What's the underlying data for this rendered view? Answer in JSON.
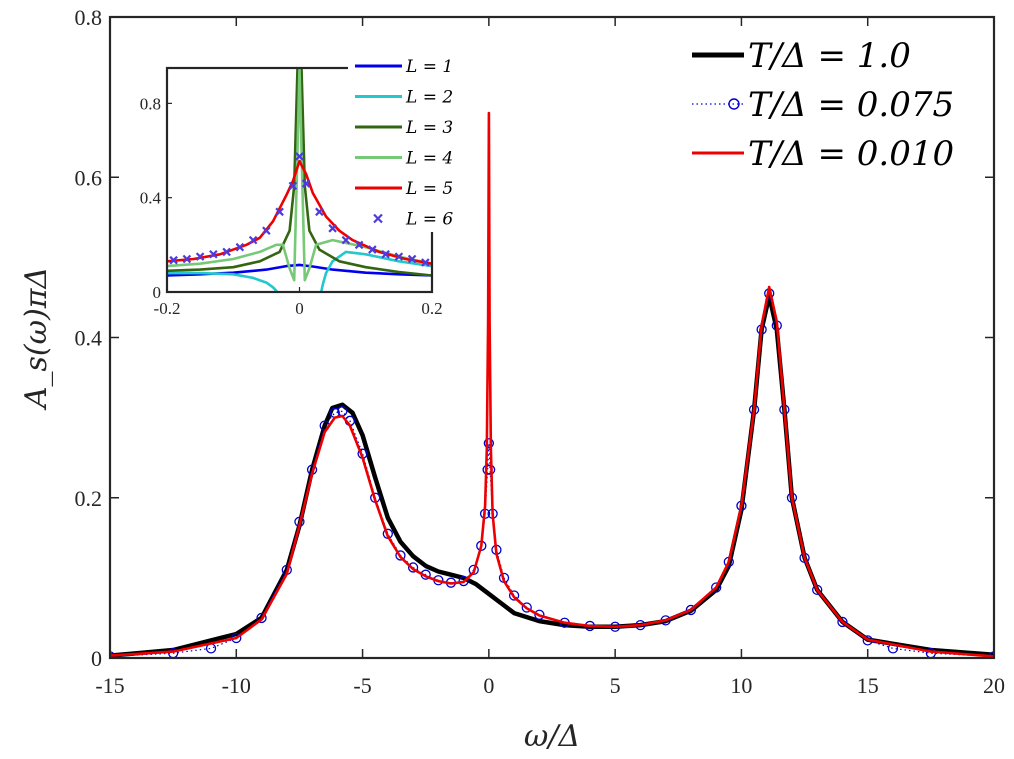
{
  "chart_data": [
    {
      "type": "line",
      "xlabel": "ω/Δ",
      "ylabel": "A_s(ω)πΔ",
      "xlim": [
        -15,
        20
      ],
      "ylim": [
        0,
        0.8
      ],
      "xticks": [
        -15,
        -10,
        -5,
        0,
        5,
        10,
        15,
        20
      ],
      "xtick_labels": [
        "-15",
        "-10",
        "-5",
        "0",
        "5",
        "10",
        "15",
        "20"
      ],
      "yticks": [
        0,
        0.2,
        0.4,
        0.6,
        0.8
      ],
      "ytick_labels": [
        "0",
        "0.2",
        "0.4",
        "0.6",
        "0.8"
      ],
      "grid": false,
      "legend_position": "top-right",
      "series": [
        {
          "name": "T/Δ = 1.0",
          "color": "#000000",
          "style": "solid-thick",
          "x": [
            -15,
            -12.5,
            -10,
            -9,
            -8,
            -7.5,
            -7,
            -6.5,
            -6.2,
            -5.8,
            -5.4,
            -5,
            -4.5,
            -4,
            -3.5,
            -3,
            -2.5,
            -2,
            -1.5,
            -1,
            -0.5,
            0,
            0.5,
            1,
            2,
            3,
            4,
            5,
            6,
            7,
            8,
            9,
            9.5,
            10,
            10.5,
            10.8,
            11.1,
            11.4,
            11.7,
            12,
            12.5,
            13,
            14,
            15,
            17.5,
            20
          ],
          "y": [
            0.003,
            0.01,
            0.03,
            0.05,
            0.11,
            0.165,
            0.235,
            0.29,
            0.312,
            0.316,
            0.306,
            0.278,
            0.225,
            0.175,
            0.145,
            0.127,
            0.115,
            0.108,
            0.104,
            0.1,
            0.092,
            0.08,
            0.068,
            0.056,
            0.046,
            0.041,
            0.039,
            0.039,
            0.041,
            0.046,
            0.059,
            0.085,
            0.115,
            0.185,
            0.31,
            0.41,
            0.452,
            0.41,
            0.31,
            0.2,
            0.125,
            0.085,
            0.045,
            0.023,
            0.01,
            0.004
          ]
        },
        {
          "name": "T/Δ = 0.075",
          "color": "#0000cc",
          "style": "dotted-circles",
          "x": [
            -15,
            -12.5,
            -11,
            -10,
            -9,
            -8,
            -7.5,
            -7,
            -6.5,
            -6.1,
            -5.8,
            -5.5,
            -5,
            -4.5,
            -4,
            -3.5,
            -3,
            -2.5,
            -2,
            -1.5,
            -1,
            -0.6,
            -0.3,
            -0.15,
            -0.05,
            0,
            0.05,
            0.15,
            0.3,
            0.6,
            1,
            1.5,
            2,
            3,
            4,
            5,
            6,
            7,
            8,
            9,
            9.5,
            10,
            10.5,
            10.8,
            11.1,
            11.4,
            11.7,
            12,
            12.5,
            13,
            14,
            15,
            16,
            17.5,
            20
          ],
          "y": [
            0.002,
            0.006,
            0.012,
            0.025,
            0.05,
            0.11,
            0.17,
            0.235,
            0.29,
            0.306,
            0.308,
            0.296,
            0.255,
            0.2,
            0.155,
            0.128,
            0.113,
            0.104,
            0.097,
            0.094,
            0.096,
            0.11,
            0.14,
            0.18,
            0.235,
            0.268,
            0.235,
            0.18,
            0.135,
            0.1,
            0.078,
            0.063,
            0.054,
            0.044,
            0.04,
            0.039,
            0.041,
            0.047,
            0.06,
            0.088,
            0.12,
            0.19,
            0.31,
            0.41,
            0.455,
            0.415,
            0.31,
            0.2,
            0.125,
            0.085,
            0.045,
            0.022,
            0.012,
            0.006,
            0.002
          ]
        },
        {
          "name": "T/Δ = 0.010",
          "color": "#ee0000",
          "style": "solid",
          "x": [
            -15,
            -12.5,
            -10,
            -9,
            -8,
            -7.5,
            -7,
            -6.5,
            -6.1,
            -5.8,
            -5.5,
            -5,
            -4.5,
            -4,
            -3.5,
            -3,
            -2.5,
            -2,
            -1.5,
            -1,
            -0.6,
            -0.3,
            -0.15,
            -0.08,
            -0.03,
            0,
            0.03,
            0.08,
            0.15,
            0.3,
            0.6,
            1,
            1.5,
            2,
            3,
            4,
            5,
            6,
            7,
            8,
            9,
            9.5,
            10,
            10.5,
            10.8,
            11.1,
            11.4,
            11.7,
            12,
            12.5,
            13,
            14,
            15,
            17.5,
            20
          ],
          "y": [
            0.003,
            0.008,
            0.025,
            0.048,
            0.105,
            0.165,
            0.23,
            0.282,
            0.3,
            0.302,
            0.29,
            0.25,
            0.197,
            0.152,
            0.126,
            0.111,
            0.102,
            0.096,
            0.093,
            0.095,
            0.107,
            0.14,
            0.19,
            0.26,
            0.42,
            0.68,
            0.42,
            0.26,
            0.18,
            0.13,
            0.096,
            0.076,
            0.062,
            0.053,
            0.044,
            0.04,
            0.039,
            0.041,
            0.047,
            0.06,
            0.088,
            0.12,
            0.19,
            0.31,
            0.415,
            0.463,
            0.42,
            0.31,
            0.2,
            0.125,
            0.085,
            0.045,
            0.023,
            0.008,
            0.002
          ]
        }
      ]
    },
    {
      "type": "line",
      "position": "inset-top-left",
      "xlim": [
        -0.2,
        0.2
      ],
      "ylim": [
        0,
        0.95
      ],
      "xticks": [
        -0.2,
        0,
        0.2
      ],
      "xtick_labels": [
        "-0.2",
        "0",
        "0.2"
      ],
      "yticks": [
        0,
        0.4,
        0.8
      ],
      "ytick_labels": [
        "0",
        "0.4",
        "0.8"
      ],
      "grid": false,
      "legend_position": "outside-top-right",
      "series": [
        {
          "name": "L = 1",
          "color": "#0000ee",
          "style": "solid",
          "x": [
            -0.2,
            -0.15,
            -0.1,
            -0.05,
            -0.02,
            0,
            0.02,
            0.05,
            0.1,
            0.15,
            0.2
          ],
          "y": [
            0.07,
            0.075,
            0.082,
            0.095,
            0.11,
            0.115,
            0.108,
            0.095,
            0.082,
            0.075,
            0.07
          ]
        },
        {
          "name": "L = 2",
          "color": "#22c8cc",
          "style": "solid",
          "x": [
            -0.2,
            -0.15,
            -0.1,
            -0.07,
            -0.05,
            -0.04,
            -0.035,
            -0.032,
            -0.03,
            null,
            0.03,
            0.032,
            0.035,
            0.04,
            0.05,
            0.07,
            0.1,
            0.15,
            0.2
          ],
          "y": [
            0.08,
            0.08,
            0.075,
            0.06,
            0.04,
            0.02,
            0.005,
            -0.01,
            -0.02,
            null,
            -0.02,
            -0.01,
            0.03,
            0.08,
            0.13,
            0.17,
            0.16,
            0.13,
            0.11
          ]
        },
        {
          "name": "L = 3",
          "color": "#336611",
          "style": "solid",
          "x": [
            -0.2,
            -0.15,
            -0.1,
            -0.06,
            -0.03,
            -0.015,
            -0.008,
            -0.003,
            0,
            0.003,
            0.008,
            0.015,
            0.03,
            0.06,
            0.1,
            0.15,
            0.2
          ],
          "y": [
            0.09,
            0.095,
            0.105,
            0.13,
            0.17,
            0.26,
            0.45,
            0.95,
            0.95,
            0.95,
            0.45,
            0.26,
            0.18,
            0.13,
            0.105,
            0.085,
            0.07
          ],
          "note": "peak exceeds inset frame"
        },
        {
          "name": "L = 4",
          "color": "#77c877",
          "style": "solid",
          "x": [
            -0.2,
            -0.15,
            -0.1,
            -0.06,
            -0.035,
            -0.025,
            -0.015,
            -0.008,
            -0.003,
            0,
            0.003,
            0.008,
            0.015,
            0.025,
            0.05,
            0.1,
            0.15,
            0.2
          ],
          "y": [
            0.11,
            0.12,
            0.14,
            0.17,
            0.2,
            0.2,
            0.1,
            0.05,
            0.6,
            0.95,
            0.6,
            0.05,
            0.1,
            0.2,
            0.22,
            0.19,
            0.15,
            0.12
          ]
        },
        {
          "name": "L = 5",
          "color": "#ee0000",
          "style": "solid",
          "x": [
            -0.2,
            -0.16,
            -0.12,
            -0.08,
            -0.06,
            -0.04,
            -0.02,
            -0.01,
            0,
            0.01,
            0.02,
            0.04,
            0.06,
            0.08,
            0.12,
            0.16,
            0.2
          ],
          "y": [
            0.13,
            0.14,
            0.16,
            0.2,
            0.23,
            0.3,
            0.41,
            0.47,
            0.555,
            0.5,
            0.42,
            0.32,
            0.26,
            0.22,
            0.17,
            0.14,
            0.12
          ],
          "note": "x-axis tick label '0' sits at x = 0"
        },
        {
          "name": "L = 6",
          "color": "#4d3bdc",
          "style": "markers-x",
          "x": [
            -0.19,
            -0.17,
            -0.15,
            -0.13,
            -0.11,
            -0.09,
            -0.07,
            -0.05,
            -0.03,
            -0.01,
            0,
            0.01,
            0.03,
            0.05,
            0.07,
            0.09,
            0.11,
            0.13,
            0.15,
            0.17,
            0.19
          ],
          "y": [
            0.135,
            0.14,
            0.15,
            0.16,
            0.17,
            0.19,
            0.22,
            0.26,
            0.34,
            0.45,
            0.575,
            0.46,
            0.34,
            0.27,
            0.22,
            0.2,
            0.18,
            0.16,
            0.15,
            0.14,
            0.125
          ]
        }
      ]
    }
  ]
}
